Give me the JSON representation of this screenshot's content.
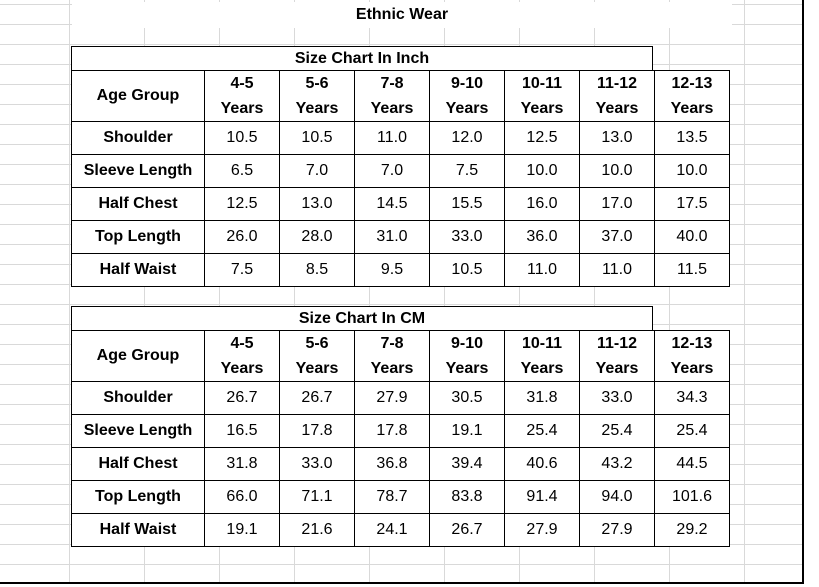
{
  "title": "Ethnic Wear",
  "tables": [
    {
      "caption": "Size Chart In Inch",
      "header": [
        "Age Group",
        "4-5 Years",
        "5-6 Years",
        "7-8 Years",
        "9-10 Years",
        "10-11 Years",
        "11-12 Years",
        "12-13 Years"
      ],
      "header_lines": [
        [
          "4-5",
          "Years"
        ],
        [
          "5-6",
          "Years"
        ],
        [
          "7-8",
          "Years"
        ],
        [
          "9-10",
          "Years"
        ],
        [
          "10-11",
          "Years"
        ],
        [
          "11-12",
          "Years"
        ],
        [
          "12-13",
          "Years"
        ]
      ],
      "rows": [
        {
          "label": "Shoulder",
          "values": [
            "10.5",
            "10.5",
            "11.0",
            "12.0",
            "12.5",
            "13.0",
            "13.5"
          ]
        },
        {
          "label": "Sleeve Length",
          "values": [
            "6.5",
            "7.0",
            "7.0",
            "7.5",
            "10.0",
            "10.0",
            "10.0"
          ]
        },
        {
          "label": "Half Chest",
          "values": [
            "12.5",
            "13.0",
            "14.5",
            "15.5",
            "16.0",
            "17.0",
            "17.5"
          ]
        },
        {
          "label": "Top Length",
          "values": [
            "26.0",
            "28.0",
            "31.0",
            "33.0",
            "36.0",
            "37.0",
            "40.0"
          ]
        },
        {
          "label": "Half Waist",
          "values": [
            "7.5",
            "8.5",
            "9.5",
            "10.5",
            "11.0",
            "11.0",
            "11.5"
          ]
        }
      ]
    },
    {
      "caption": "Size Chart In CM",
      "header": [
        "Age Group",
        "4-5 Years",
        "5-6 Years",
        "7-8 Years",
        "9-10 Years",
        "10-11 Years",
        "11-12 Years",
        "12-13 Years"
      ],
      "header_lines": [
        [
          "4-5",
          "Years"
        ],
        [
          "5-6",
          "Years"
        ],
        [
          "7-8",
          "Years"
        ],
        [
          "9-10",
          "Years"
        ],
        [
          "10-11",
          "Years"
        ],
        [
          "11-12",
          "Years"
        ],
        [
          "12-13",
          "Years"
        ]
      ],
      "rows": [
        {
          "label": "Shoulder",
          "values": [
            "26.7",
            "26.7",
            "27.9",
            "30.5",
            "31.8",
            "33.0",
            "34.3"
          ]
        },
        {
          "label": "Sleeve Length",
          "values": [
            "16.5",
            "17.8",
            "17.8",
            "19.1",
            "25.4",
            "25.4",
            "25.4"
          ]
        },
        {
          "label": "Half Chest",
          "values": [
            "31.8",
            "33.0",
            "36.8",
            "39.4",
            "40.6",
            "43.2",
            "44.5"
          ]
        },
        {
          "label": "Top Length",
          "values": [
            "66.0",
            "71.1",
            "78.7",
            "83.8",
            "91.4",
            "94.0",
            "101.6"
          ]
        },
        {
          "label": "Half Waist",
          "values": [
            "19.1",
            "21.6",
            "24.1",
            "26.7",
            "27.9",
            "27.9",
            "29.2"
          ]
        }
      ]
    }
  ]
}
